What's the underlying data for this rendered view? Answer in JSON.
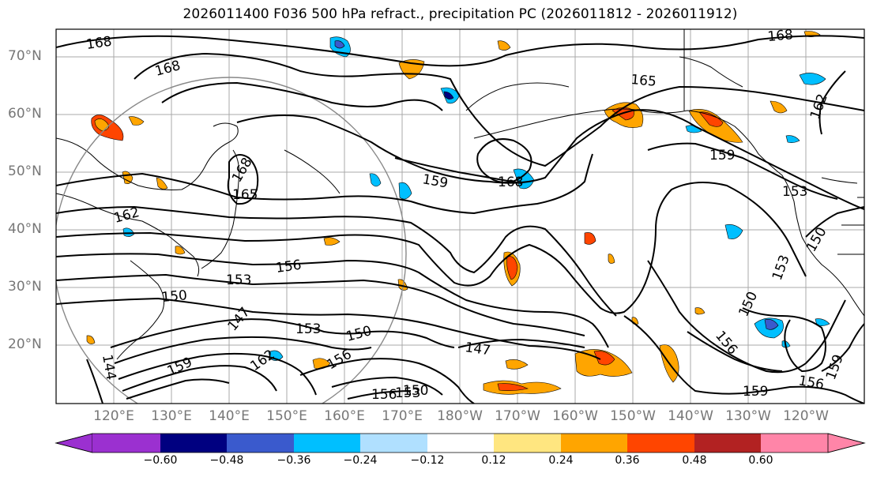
{
  "title": "2026011400 F036 500 hPa refract., precipitation PC (2026011812 - 2026011912)",
  "lat_labels": [
    "70°N",
    "60°N",
    "50°N",
    "40°N",
    "30°N",
    "20°N"
  ],
  "lon_labels": [
    "120°E",
    "130°E",
    "140°E",
    "150°E",
    "160°E",
    "170°E",
    "180°W",
    "170°W",
    "160°W",
    "150°W",
    "140°W",
    "130°W",
    "120°W"
  ],
  "colorbar": {
    "ticks": [
      "−0.60",
      "−0.48",
      "−0.36",
      "−0.24",
      "−0.12",
      "0.12",
      "0.24",
      "0.36",
      "0.48",
      "0.60"
    ],
    "colors": [
      "#9b30d0",
      "#000080",
      "#3a5acd",
      "#00bfff",
      "#b0e0ff",
      "#ffffff",
      "#ffe680",
      "#ffa500",
      "#ff4500",
      "#b22222",
      "#ff85a8"
    ]
  },
  "contour_labels": {
    "c168a": "168",
    "c168b": "168",
    "c168c": "168",
    "c168d": "168",
    "c168e": "168",
    "c165a": "165",
    "c165b": "165",
    "c162a": "162",
    "c162b": "162",
    "c162c": "162",
    "c159a": "159",
    "c159b": "159",
    "c159c": "159",
    "c159d": "159",
    "c159e": "159",
    "c156a": "156",
    "c156b": "156",
    "c156c": "156",
    "c156d": "156",
    "c156e": "156",
    "c153a": "153",
    "c153b": "153",
    "c153c": "153",
    "c153d": "153",
    "c153e": "153",
    "c150a": "150",
    "c150b": "150",
    "c150c": "150",
    "c150d": "150",
    "c150e": "150",
    "c147a": "147",
    "c147b": "147",
    "c144a": "144"
  },
  "legend_colors": {
    "contour": "#000000",
    "grid": "#999999",
    "coast": "#000000",
    "circle": "#888888"
  }
}
